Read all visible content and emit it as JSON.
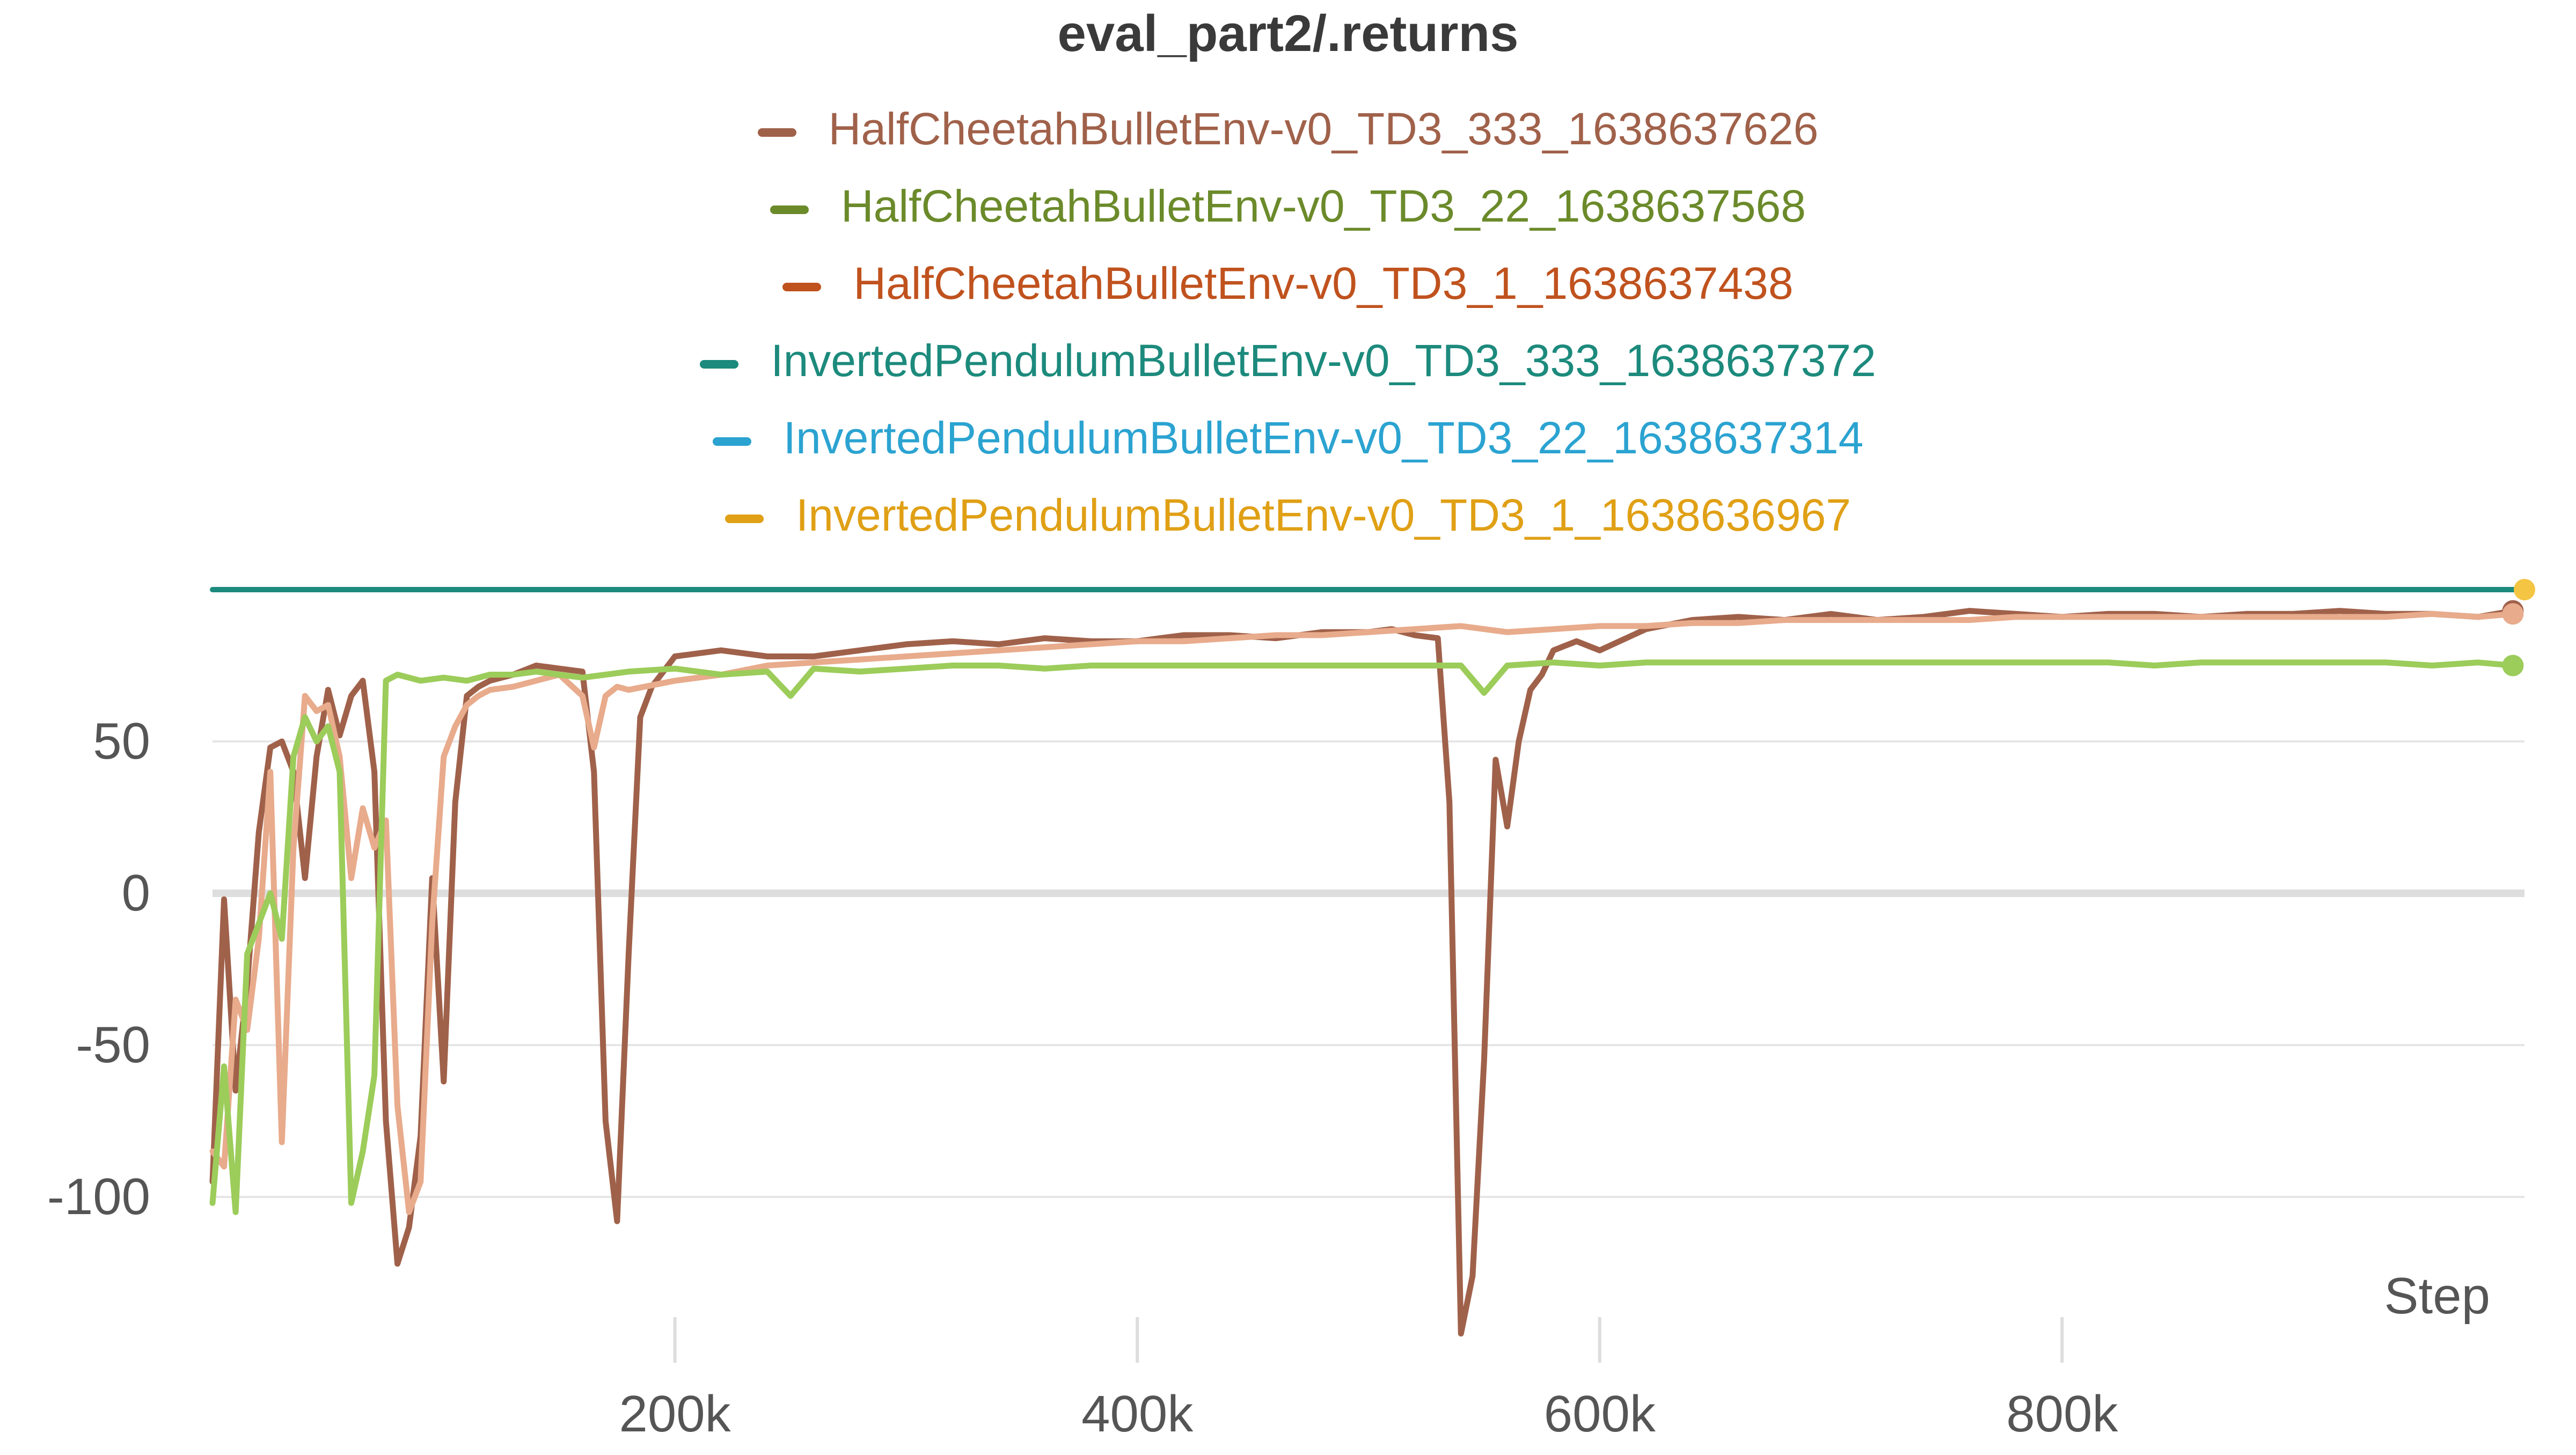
{
  "chart_data": {
    "type": "line",
    "title": "eval_part2/.returns",
    "xlabel": "Step",
    "ylabel": "",
    "xlim": [
      0,
      1000000
    ],
    "ylim": [
      -145,
      104
    ],
    "x_ticks": [
      200000,
      400000,
      600000,
      800000
    ],
    "x_tick_labels": [
      "200k",
      "400k",
      "600k",
      "800k"
    ],
    "y_ticks": [
      -100,
      -50,
      0,
      50
    ],
    "y_tick_labels": [
      "-100",
      "-50",
      "0",
      "50"
    ],
    "grid": true,
    "legend_position": "top-center",
    "series": [
      {
        "name": "HalfCheetahBulletEnv-v0_TD3_333_1638637626",
        "color": "#a0614a",
        "draw_color": "#a0614a",
        "end_marker": true,
        "x": [
          0,
          5000,
          10000,
          15000,
          20000,
          25000,
          30000,
          35000,
          40000,
          45000,
          50000,
          55000,
          60000,
          65000,
          70000,
          75000,
          80000,
          85000,
          90000,
          95000,
          100000,
          105000,
          110000,
          115000,
          120000,
          130000,
          140000,
          150000,
          160000,
          165000,
          170000,
          175000,
          180000,
          185000,
          190000,
          200000,
          220000,
          240000,
          260000,
          280000,
          300000,
          320000,
          340000,
          360000,
          380000,
          400000,
          420000,
          440000,
          460000,
          480000,
          500000,
          510000,
          520000,
          530000,
          535000,
          540000,
          545000,
          550000,
          555000,
          560000,
          565000,
          570000,
          575000,
          580000,
          590000,
          600000,
          620000,
          640000,
          660000,
          680000,
          700000,
          720000,
          740000,
          760000,
          780000,
          800000,
          820000,
          840000,
          860000,
          880000,
          900000,
          920000,
          940000,
          960000,
          980000,
          995000
        ],
        "y": [
          -95,
          -2,
          -65,
          -30,
          20,
          48,
          50,
          40,
          5,
          45,
          67,
          52,
          65,
          70,
          40,
          -75,
          -122,
          -110,
          -80,
          5,
          -62,
          30,
          65,
          68,
          70,
          72,
          75,
          74,
          73,
          40,
          -75,
          -108,
          -20,
          58,
          68,
          78,
          80,
          78,
          78,
          80,
          82,
          83,
          82,
          84,
          83,
          83,
          85,
          85,
          84,
          86,
          86,
          87,
          85,
          84,
          30,
          -145,
          -126,
          -55,
          44,
          22,
          50,
          67,
          72,
          80,
          83,
          80,
          87,
          90,
          91,
          90,
          92,
          90,
          91,
          93,
          92,
          91,
          92,
          92,
          91,
          92,
          92,
          93,
          92,
          92,
          91,
          93
        ]
      },
      {
        "name": "HalfCheetahBulletEnv-v0_TD3_22_1638637568",
        "color": "#6b8a2a",
        "draw_color": "#e8ab8c",
        "end_marker": true,
        "x": [
          0,
          5000,
          10000,
          15000,
          20000,
          25000,
          30000,
          35000,
          40000,
          45000,
          50000,
          55000,
          60000,
          65000,
          70000,
          75000,
          80000,
          85000,
          90000,
          95000,
          100000,
          105000,
          110000,
          115000,
          120000,
          130000,
          140000,
          150000,
          160000,
          165000,
          170000,
          175000,
          180000,
          200000,
          220000,
          240000,
          260000,
          280000,
          300000,
          320000,
          340000,
          360000,
          380000,
          400000,
          420000,
          440000,
          460000,
          480000,
          500000,
          520000,
          540000,
          560000,
          580000,
          600000,
          620000,
          640000,
          660000,
          680000,
          700000,
          720000,
          740000,
          760000,
          780000,
          800000,
          820000,
          840000,
          860000,
          880000,
          900000,
          920000,
          940000,
          960000,
          980000,
          995000
        ],
        "y": [
          -85,
          -90,
          -35,
          -45,
          -15,
          40,
          -82,
          15,
          65,
          60,
          62,
          45,
          5,
          28,
          15,
          24,
          -70,
          -105,
          -95,
          -10,
          45,
          55,
          62,
          65,
          67,
          68,
          70,
          72,
          65,
          48,
          65,
          68,
          67,
          70,
          72,
          75,
          76,
          77,
          78,
          79,
          80,
          81,
          82,
          83,
          83,
          84,
          85,
          85,
          86,
          87,
          88,
          86,
          87,
          88,
          88,
          89,
          89,
          90,
          90,
          90,
          90,
          90,
          91,
          91,
          91,
          91,
          91,
          91,
          91,
          91,
          91,
          92,
          91,
          92
        ]
      },
      {
        "name": "HalfCheetahBulletEnv-v0_TD3_1_1638637438",
        "color": "#c0521e",
        "draw_color": "#c0521e",
        "end_marker": false,
        "x": [],
        "y": []
      },
      {
        "name": "InvertedPendulumBulletEnv-v0_TD3_333_1638637372",
        "color": "#1c8a7c",
        "draw_color": "#1c8a7c",
        "end_marker": false,
        "x": [
          0,
          1000000
        ],
        "y": [
          100,
          100
        ]
      },
      {
        "name": "InvertedPendulumBulletEnv-v0_TD3_22_1638637314",
        "color": "#2ba3d1",
        "draw_color": "#2ba3d1",
        "end_marker": false,
        "x": [],
        "y": []
      },
      {
        "name": "InvertedPendulumBulletEnv-v0_TD3_1_1638636967",
        "color": "#e0a015",
        "draw_color": "#f4c542",
        "end_marker": true,
        "x": [
          1000000
        ],
        "y": [
          100
        ]
      },
      {
        "name": "",
        "color": "#9ccc5a",
        "draw_color": "#9ccc5a",
        "end_marker": true,
        "x": [
          0,
          5000,
          10000,
          15000,
          20000,
          25000,
          30000,
          35000,
          40000,
          45000,
          50000,
          55000,
          60000,
          65000,
          70000,
          75000,
          80000,
          90000,
          100000,
          110000,
          120000,
          130000,
          140000,
          150000,
          160000,
          170000,
          180000,
          200000,
          220000,
          240000,
          250000,
          260000,
          280000,
          300000,
          320000,
          340000,
          360000,
          380000,
          400000,
          420000,
          440000,
          460000,
          480000,
          500000,
          520000,
          535000,
          540000,
          550000,
          560000,
          580000,
          600000,
          620000,
          640000,
          660000,
          680000,
          700000,
          720000,
          740000,
          760000,
          780000,
          800000,
          820000,
          840000,
          860000,
          880000,
          900000,
          920000,
          940000,
          960000,
          980000,
          995000
        ],
        "y": [
          -102,
          -57,
          -105,
          -20,
          -10,
          0,
          -15,
          45,
          58,
          50,
          55,
          40,
          -102,
          -85,
          -60,
          70,
          72,
          70,
          71,
          70,
          72,
          72,
          73,
          72,
          71,
          72,
          73,
          74,
          72,
          73,
          65,
          74,
          73,
          74,
          75,
          75,
          74,
          75,
          75,
          75,
          75,
          75,
          75,
          75,
          75,
          75,
          75,
          66,
          75,
          76,
          75,
          76,
          76,
          76,
          76,
          76,
          76,
          76,
          76,
          76,
          76,
          76,
          75,
          76,
          76,
          76,
          76,
          76,
          75,
          76,
          75
        ]
      }
    ]
  }
}
